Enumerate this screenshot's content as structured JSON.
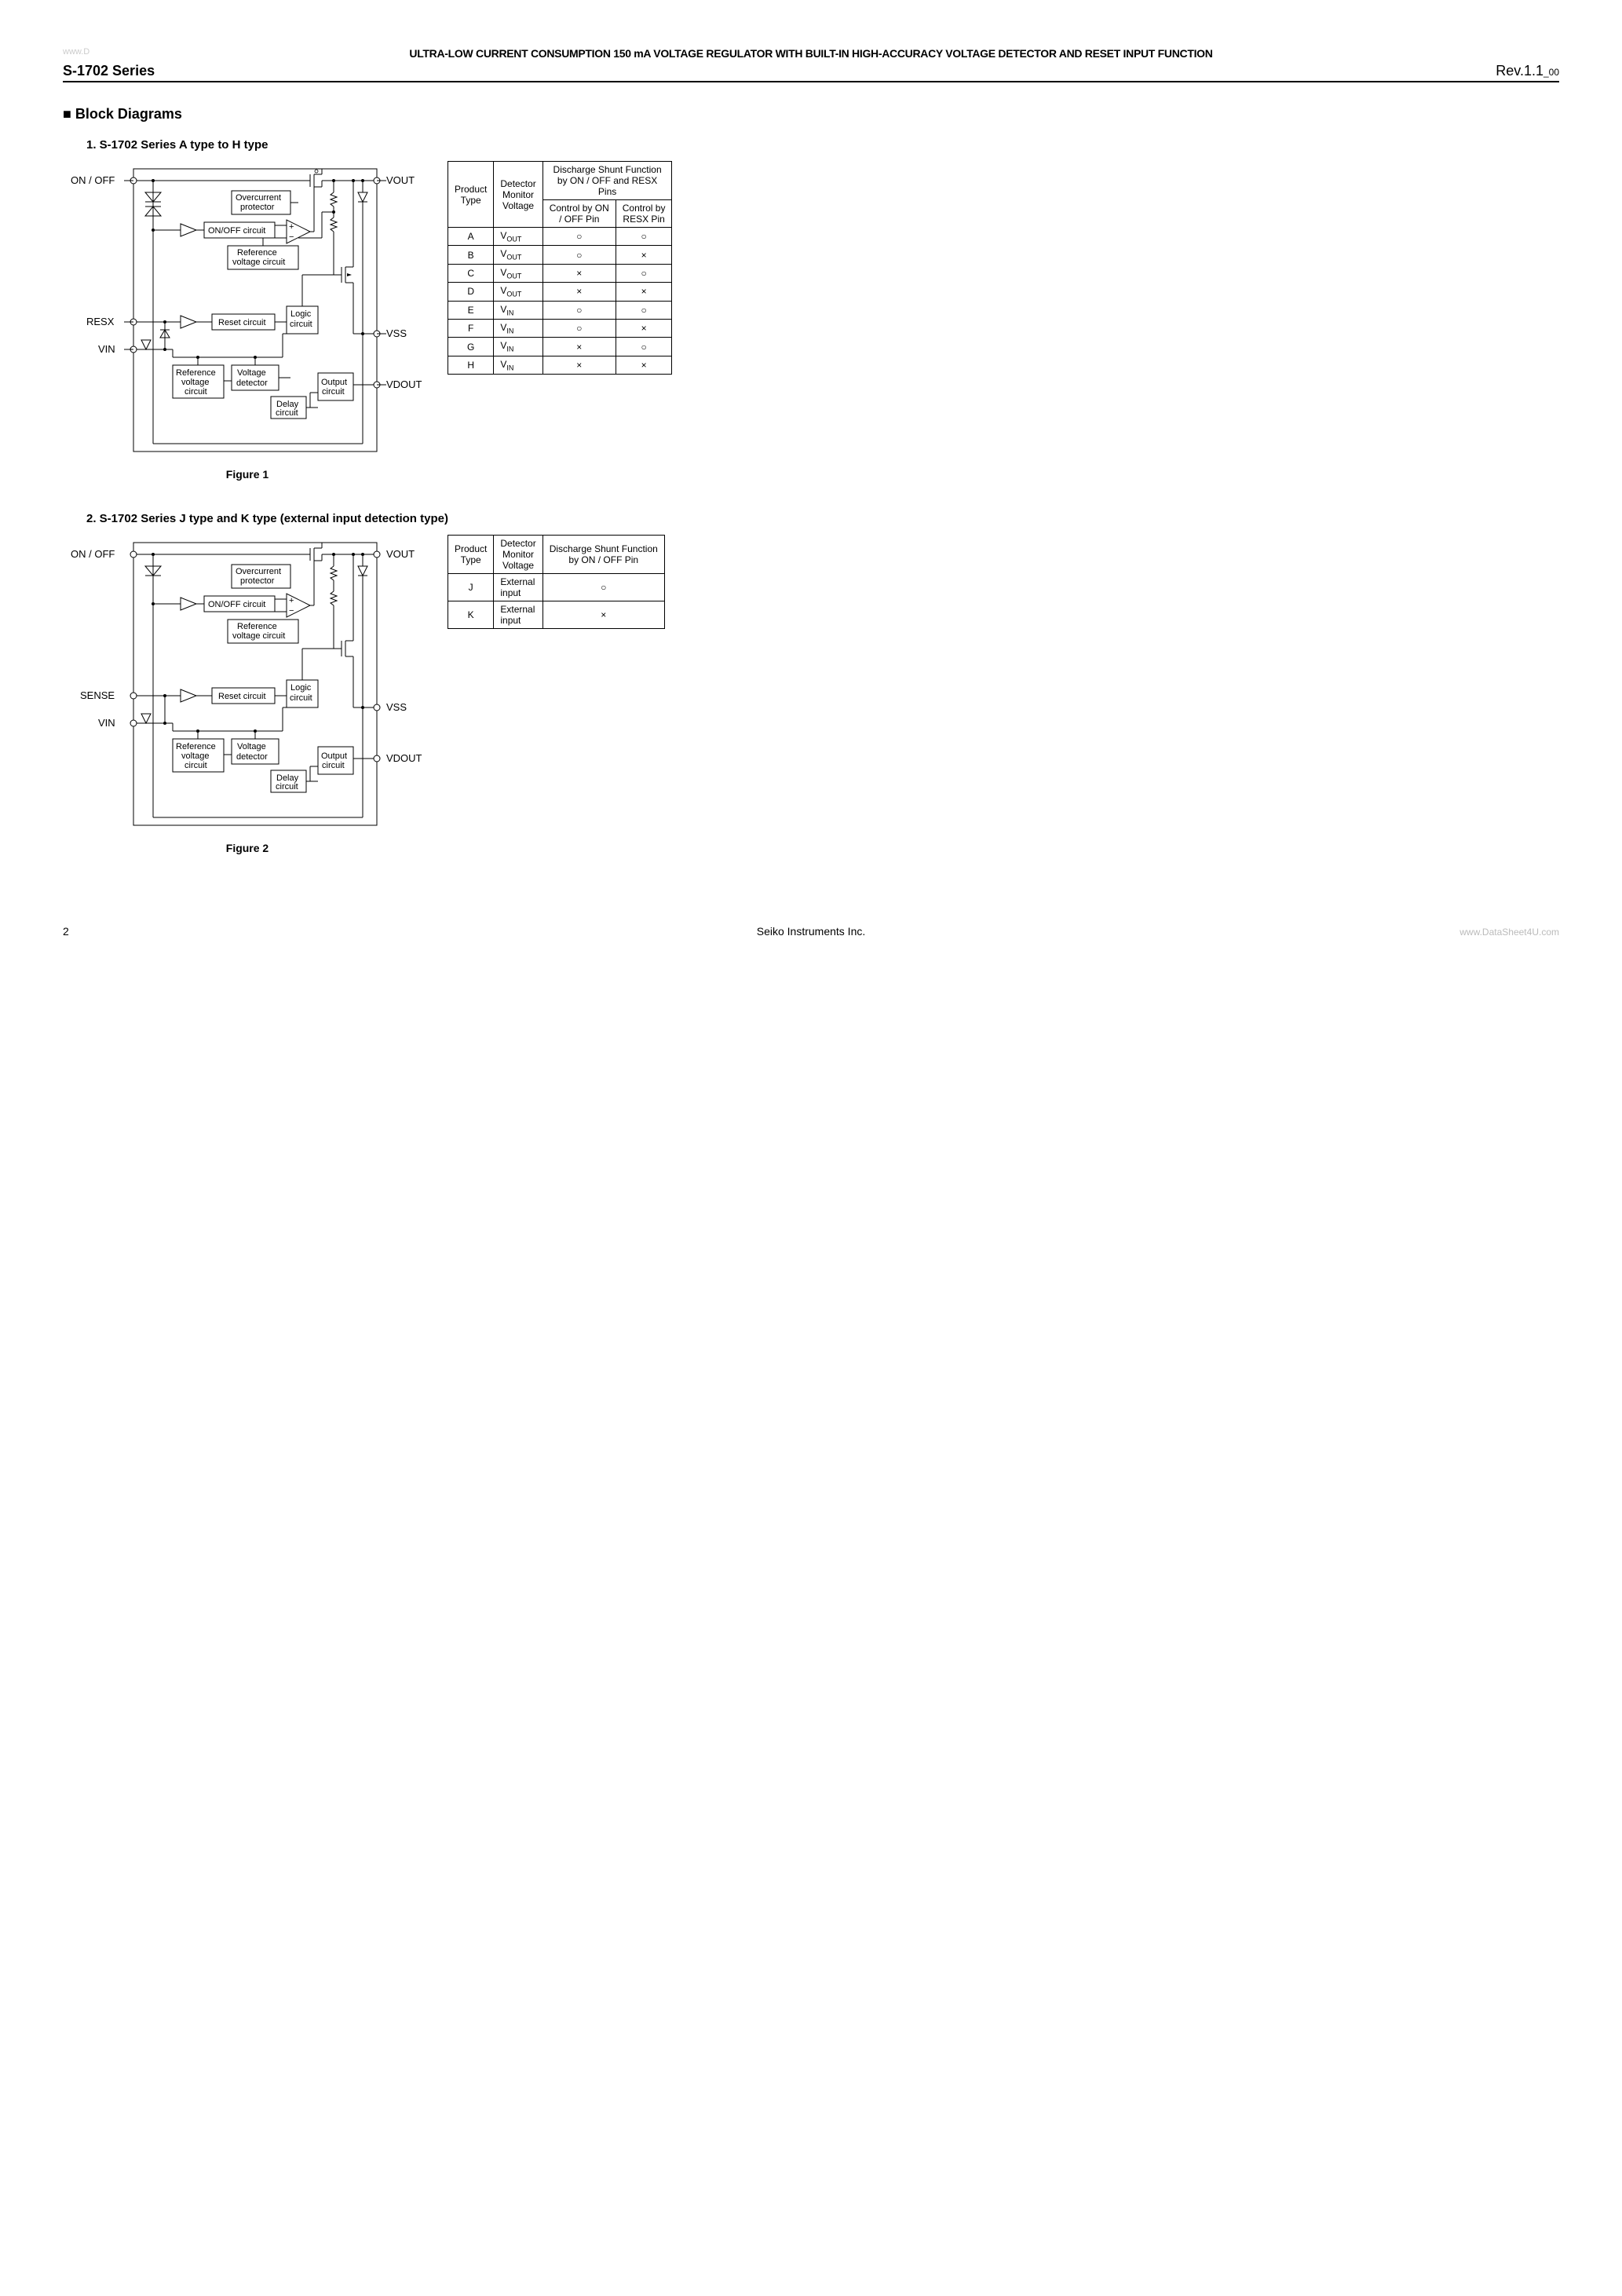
{
  "watermark_top": "www.D",
  "header_title": "ULTRA-LOW CURRENT CONSUMPTION 150 mA VOLTAGE REGULATOR WITH BUILT-IN HIGH-ACCURACY VOLTAGE DETECTOR AND RESET INPUT FUNCTION",
  "series": "S-1702  Series",
  "rev": "Rev.1.1",
  "rev_suffix": "_00",
  "section_title": "Block Diagrams",
  "sub1": "1.    S-1702 Series A type to H type",
  "sub2": "2.    S-1702 Series J type and K type (external input detection type)",
  "fig1_caption": "Figure 1",
  "fig2_caption": "Figure 2",
  "pins1": {
    "onoff": "ON / OFF",
    "resx": "RESX",
    "vin": "VIN",
    "vout": "VOUT",
    "vss": "VSS",
    "vdout": "VDOUT"
  },
  "pins2": {
    "onoff": "ON / OFF",
    "sense": "SENSE",
    "vin": "VIN",
    "vout": "VOUT",
    "vss": "VSS",
    "vdout": "VDOUT"
  },
  "blocks": {
    "overcurrent": "Overcurrent\nprotector",
    "onoff_circuit": "ON/OFF circuit",
    "ref_voltage": "Reference\nvoltage circuit",
    "reset": "Reset circuit",
    "logic": "Logic\ncircuit",
    "ref_voltage2": "Reference\nvoltage\ncircuit",
    "vdetector": "Voltage\ndetector",
    "delay": "Delay\ncircuit",
    "output": "Output\ncircuit"
  },
  "table1": {
    "headers": {
      "product_type": "Product\nType",
      "monitor": "Detector\nMonitor\nVoltage",
      "shunt": "Discharge Shunt Function\nby ON / OFF and RESX\nPins",
      "ctrl_onoff": "Control by ON\n/ OFF Pin",
      "ctrl_resx": "Control by\nRESX Pin"
    },
    "rows": [
      {
        "type": "A",
        "mon": "V<sub>OUT</sub>",
        "c1": "○",
        "c2": "○"
      },
      {
        "type": "B",
        "mon": "V<sub>OUT</sub>",
        "c1": "○",
        "c2": "×"
      },
      {
        "type": "C",
        "mon": "V<sub>OUT</sub>",
        "c1": "×",
        "c2": "○"
      },
      {
        "type": "D",
        "mon": "V<sub>OUT</sub>",
        "c1": "×",
        "c2": "×"
      },
      {
        "type": "E",
        "mon": "V<sub>IN</sub>",
        "c1": "○",
        "c2": "○"
      },
      {
        "type": "F",
        "mon": "V<sub>IN</sub>",
        "c1": "○",
        "c2": "×"
      },
      {
        "type": "G",
        "mon": "V<sub>IN</sub>",
        "c1": "×",
        "c2": "○"
      },
      {
        "type": "H",
        "mon": "V<sub>IN</sub>",
        "c1": "×",
        "c2": "×"
      }
    ]
  },
  "table2": {
    "headers": {
      "product_type": "Product\nType",
      "monitor": "Detector\nMonitor\nVoltage",
      "shunt": "Discharge Shunt Function\nby ON / OFF Pin"
    },
    "rows": [
      {
        "type": "J",
        "mon": "External\ninput",
        "c1": "○"
      },
      {
        "type": "K",
        "mon": "External\ninput",
        "c1": "×"
      }
    ]
  },
  "page_num": "2",
  "footer_center": "Seiko  Instruments  Inc.",
  "footer_right": "www.DataSheet4U.com",
  "colors": {
    "text": "#000000",
    "bg": "#ffffff",
    "watermark": "#cccccc"
  }
}
